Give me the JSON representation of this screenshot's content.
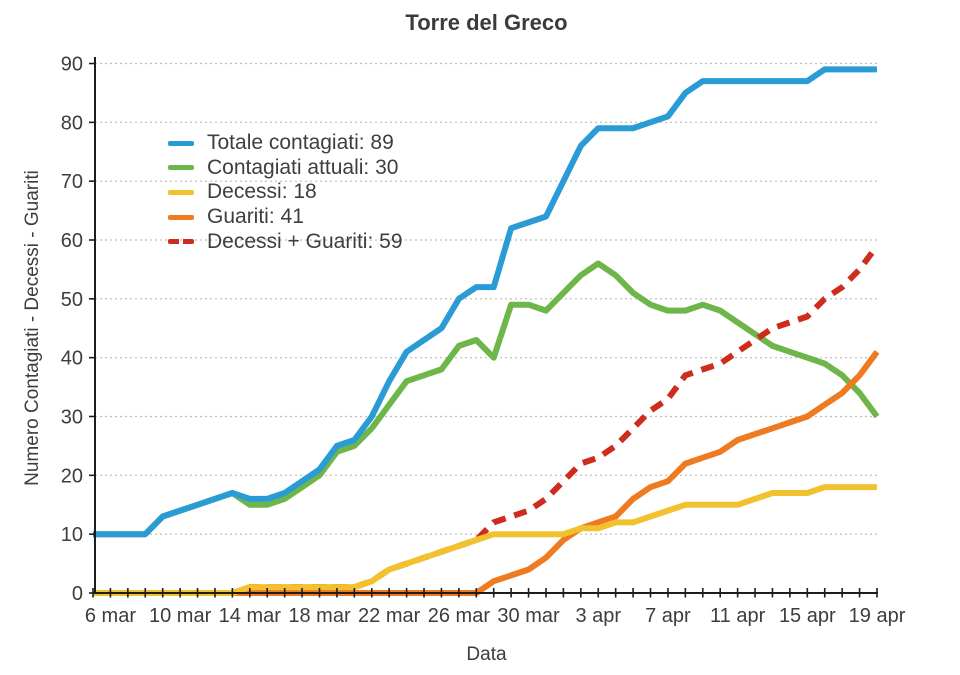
{
  "title": "Torre del Greco",
  "x_axis_label": "Data",
  "y_axis_label": "Numero Contagiati - Decessi - Guariti",
  "colors": {
    "axis": "#1d1d1f",
    "grid": "#bcbcbc",
    "text": "#3d3d3d",
    "background": "#ffffff"
  },
  "legend": {
    "items": [
      {
        "label": "Totale contagiati: 89"
      },
      {
        "label": "Contagiati attuali: 30"
      },
      {
        "label": "Decessi: 18"
      },
      {
        "label": "Guariti: 41"
      },
      {
        "label": "Decessi + Guariti: 59"
      }
    ]
  },
  "chart_data": {
    "type": "line",
    "title": "Torre del Greco",
    "xlabel": "Data",
    "ylabel": "Numero Contagiati - Decessi - Guariti",
    "ylim": [
      0,
      90
    ],
    "y_ticks": [
      0,
      10,
      20,
      30,
      40,
      50,
      60,
      70,
      80,
      90
    ],
    "grid": "horizontal-dotted",
    "legend_position": "upper-left-inside",
    "x": [
      "5 mar",
      "6 mar",
      "7 mar",
      "8 mar",
      "9 mar",
      "10 mar",
      "11 mar",
      "12 mar",
      "13 mar",
      "14 mar",
      "15 mar",
      "16 mar",
      "17 mar",
      "18 mar",
      "19 mar",
      "20 mar",
      "21 mar",
      "22 mar",
      "23 mar",
      "24 mar",
      "25 mar",
      "26 mar",
      "27 mar",
      "28 mar",
      "29 mar",
      "30 mar",
      "31 mar",
      "1 apr",
      "2 apr",
      "3 apr",
      "4 apr",
      "5 apr",
      "6 apr",
      "7 apr",
      "8 apr",
      "9 apr",
      "10 apr",
      "11 apr",
      "12 apr",
      "13 apr",
      "14 apr",
      "15 apr",
      "16 apr",
      "17 apr",
      "18 apr",
      "19 apr"
    ],
    "x_tick_indices": [
      1,
      5,
      9,
      13,
      17,
      21,
      25,
      29,
      33,
      37,
      41,
      45
    ],
    "x_tick_labels": [
      "6 mar",
      "10 mar",
      "14 mar",
      "18 mar",
      "22 mar",
      "26 mar",
      "30 mar",
      "3 apr",
      "7 apr",
      "11 apr",
      "15 apr",
      "19 apr"
    ],
    "series": [
      {
        "name": "Totale contagiati",
        "legend_label": "Totale contagiati: 89",
        "color": "#2a9bd5",
        "dashed": false,
        "values": [
          10,
          10,
          10,
          10,
          13,
          14,
          15,
          16,
          17,
          16,
          16,
          17,
          19,
          21,
          25,
          26,
          30,
          36,
          41,
          43,
          45,
          50,
          52,
          52,
          62,
          63,
          64,
          70,
          76,
          79,
          79,
          79,
          80,
          81,
          85,
          87,
          87,
          87,
          87,
          87,
          87,
          87,
          89,
          89,
          89,
          89
        ]
      },
      {
        "name": "Contagiati attuali",
        "legend_label": "Contagiati attuali: 30",
        "color": "#6fb64a",
        "dashed": false,
        "values": [
          10,
          10,
          10,
          10,
          13,
          14,
          15,
          16,
          17,
          15,
          15,
          16,
          18,
          20,
          24,
          25,
          28,
          32,
          36,
          37,
          38,
          42,
          43,
          40,
          49,
          49,
          48,
          51,
          54,
          56,
          54,
          51,
          49,
          48,
          48,
          49,
          48,
          46,
          44,
          42,
          41,
          40,
          39,
          37,
          34,
          30
        ]
      },
      {
        "name": "Decessi",
        "legend_label": "Decessi: 18",
        "color": "#f2c12e",
        "dashed": false,
        "values": [
          0,
          0,
          0,
          0,
          0,
          0,
          0,
          0,
          0,
          1,
          1,
          1,
          1,
          1,
          1,
          1,
          2,
          4,
          5,
          6,
          7,
          8,
          9,
          10,
          10,
          10,
          10,
          10,
          11,
          11,
          12,
          12,
          13,
          14,
          15,
          15,
          15,
          15,
          16,
          17,
          17,
          17,
          18,
          18,
          18,
          18
        ]
      },
      {
        "name": "Guariti",
        "legend_label": "Guariti: 41",
        "color": "#ee7a22",
        "dashed": false,
        "values": [
          0,
          0,
          0,
          0,
          0,
          0,
          0,
          0,
          0,
          0,
          0,
          0,
          0,
          0,
          0,
          0,
          0,
          0,
          0,
          0,
          0,
          0,
          0,
          2,
          3,
          4,
          6,
          9,
          11,
          12,
          13,
          16,
          18,
          19,
          22,
          23,
          24,
          26,
          27,
          28,
          29,
          30,
          32,
          34,
          37,
          41
        ]
      },
      {
        "name": "Decessi + Guariti",
        "legend_label": "Decessi + Guariti: 59",
        "color": "#ce2c1c",
        "dashed": true,
        "values": [
          0,
          0,
          0,
          0,
          0,
          0,
          0,
          0,
          0,
          1,
          1,
          1,
          1,
          1,
          1,
          1,
          2,
          4,
          5,
          6,
          7,
          8,
          9,
          12,
          13,
          14,
          16,
          19,
          22,
          23,
          25,
          28,
          31,
          33,
          37,
          38,
          39,
          41,
          43,
          45,
          46,
          47,
          50,
          52,
          55,
          59
        ]
      }
    ],
    "draw_order": [
      1,
      4,
      0,
      3,
      2
    ]
  }
}
